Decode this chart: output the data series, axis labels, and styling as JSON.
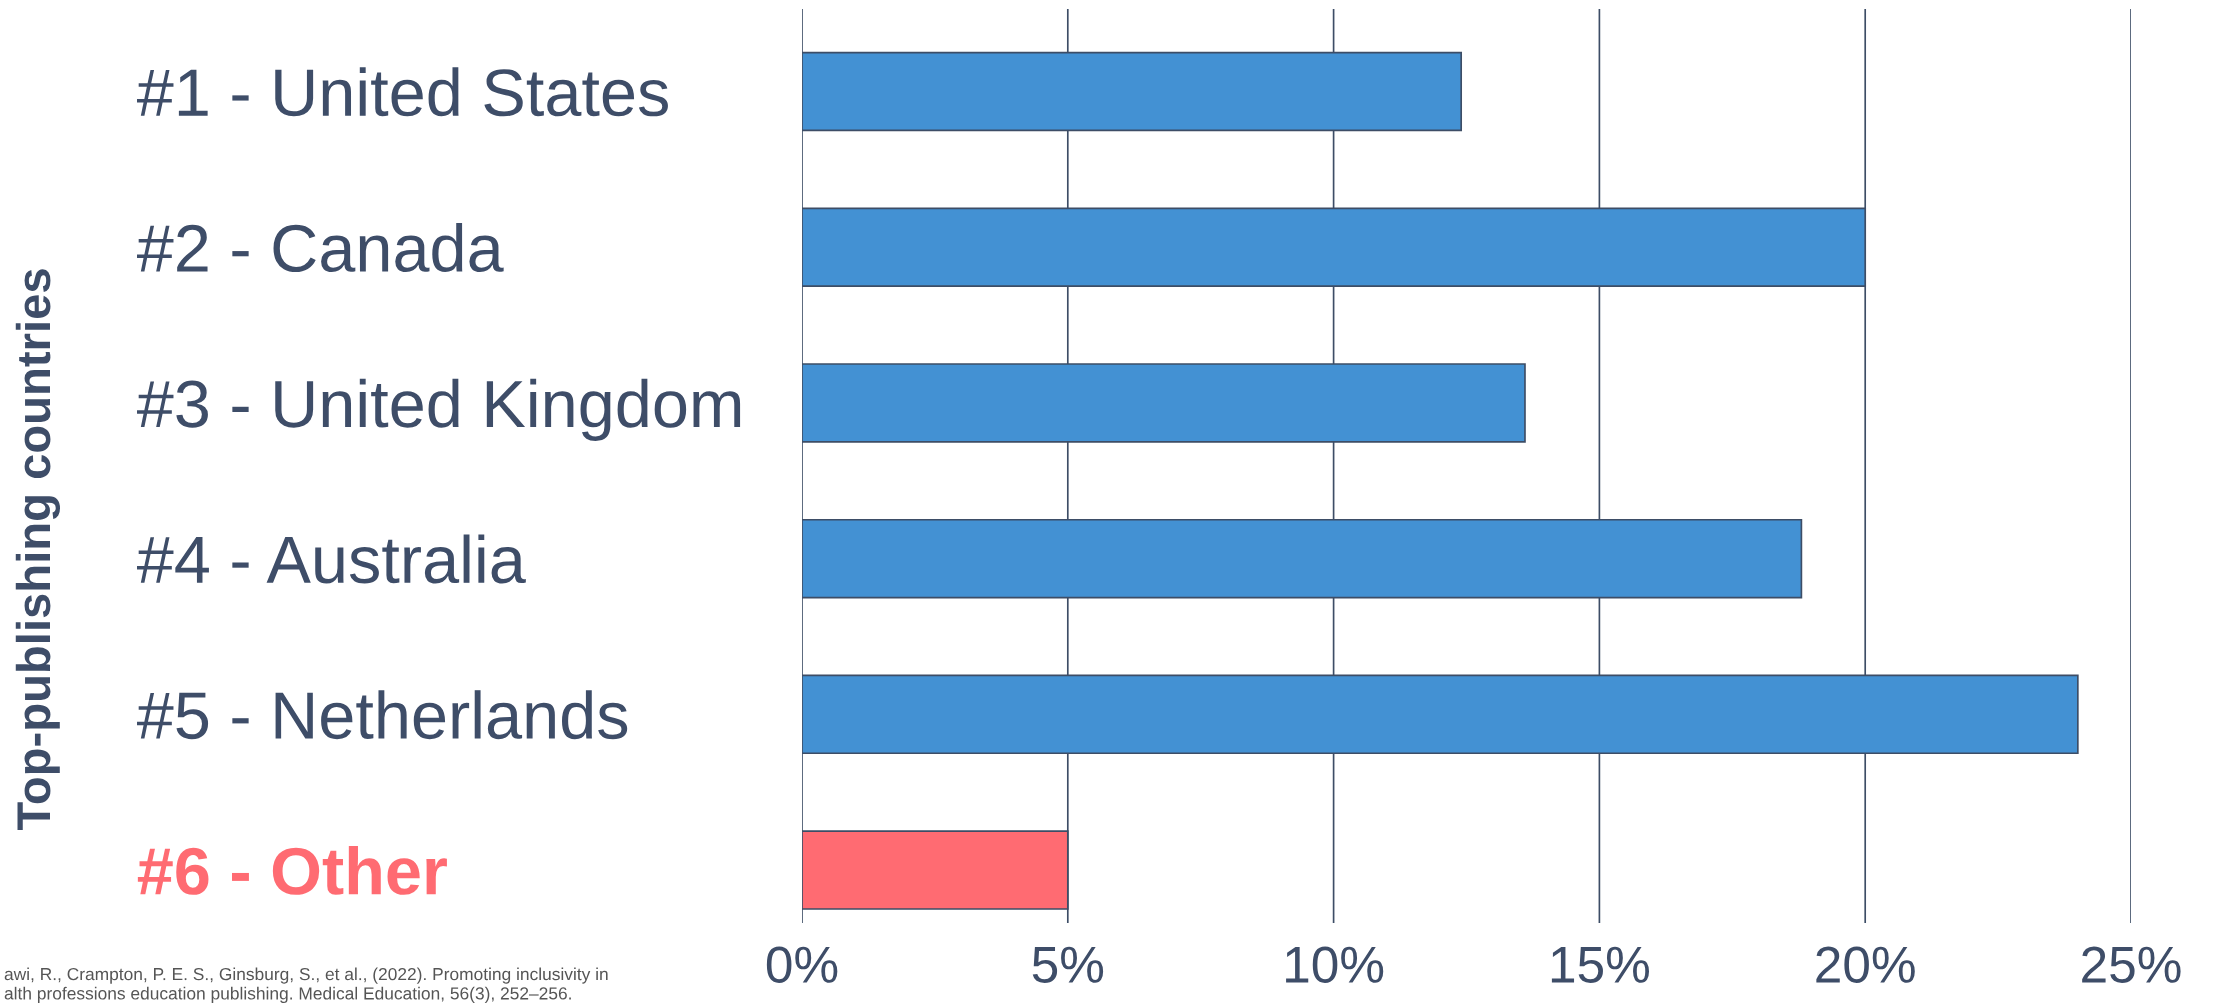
{
  "chart_data": {
    "type": "bar",
    "orientation": "horizontal",
    "ylabel": "Top-publishing countries",
    "categories": [
      "#1 - United States",
      "#2 - Canada",
      "#3 - United Kingdom",
      "#4 - Australia",
      "#5 - Netherlands",
      "#6 - Other"
    ],
    "values": [
      12.4,
      20.0,
      13.6,
      18.8,
      24.0,
      5.0
    ],
    "colors": [
      "#4391d3",
      "#4391d3",
      "#4391d3",
      "#4391d3",
      "#4391d3",
      "#ff6b72"
    ],
    "xlim": [
      0,
      25
    ],
    "xticks": [
      {
        "value": 0,
        "label": "0%"
      },
      {
        "value": 5,
        "label": "5%"
      },
      {
        "value": 10,
        "label": "10%"
      },
      {
        "value": 15,
        "label": "15%"
      },
      {
        "value": 20,
        "label": "20%"
      },
      {
        "value": 25,
        "label": "25%"
      }
    ],
    "grid": "x",
    "annotations": [
      "awi, R., Crampton, P. E. S., Ginsburg, S., et al., (2022). Promoting inclusivity in\nalth professions education publishing. Medical Education, 56(3), 252–256."
    ]
  }
}
